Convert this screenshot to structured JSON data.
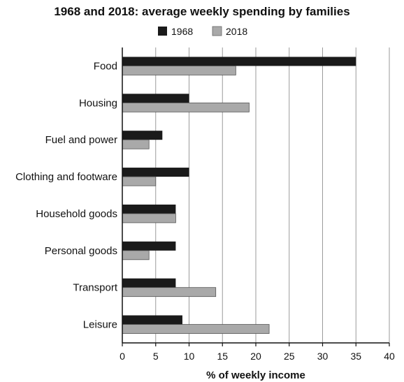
{
  "chart_data": {
    "type": "bar",
    "orientation": "horizontal",
    "title": "1968 and 2018: average weekly spending by families",
    "xlabel": "% of weekly income",
    "ylabel": "",
    "xlim": [
      0,
      40
    ],
    "xticks": [
      0,
      5,
      10,
      15,
      20,
      25,
      30,
      35,
      40
    ],
    "grid": true,
    "legend_position": "top-center",
    "categories": [
      "Food",
      "Housing",
      "Fuel and power",
      "Clothing and footware",
      "Household goods",
      "Personal goods",
      "Transport",
      "Leisure"
    ],
    "series": [
      {
        "name": "1968",
        "color": "#1a1a1a",
        "values": [
          35,
          10,
          6,
          10,
          8,
          8,
          8,
          9
        ]
      },
      {
        "name": "2018",
        "color": "#a9a9a9",
        "values": [
          17,
          19,
          4,
          5,
          8,
          4,
          14,
          22
        ]
      }
    ]
  }
}
